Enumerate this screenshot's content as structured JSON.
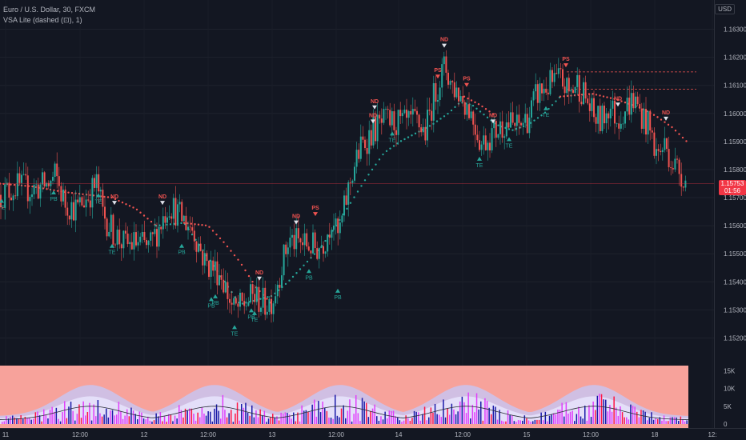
{
  "legend": {
    "symbol": "Euro / U.S. Dollar, 30, FXCM",
    "indicator": "VSA Lite (dashed (⊡), 1)"
  },
  "currency_label": "USD",
  "last_price": {
    "value": "1.15753",
    "countdown": "01:56"
  },
  "volume_panel_title": "",
  "colors": {
    "up": "#26a69a",
    "down": "#ef5350",
    "background": "#131722",
    "volume_panel": "#f7a29b"
  },
  "chart_data": [
    {
      "type": "line",
      "title": "",
      "x_ticks": [
        "11",
        "12:00",
        "12",
        "12:00",
        "13",
        "12:00",
        "14",
        "12:00",
        "15",
        "12:00",
        "18",
        "12:"
      ],
      "y_ticks": [
        "1.16300",
        "1.16200",
        "1.16100",
        "1.16000",
        "1.15900",
        "1.15800",
        "1.15700",
        "1.15600",
        "1.15500",
        "1.15400",
        "1.15300",
        "1.15200"
      ],
      "ylim": [
        1.1515,
        1.1637
      ],
      "close_path": {
        "x": [
          0,
          20,
          35,
          50,
          62,
          68,
          80,
          95,
          110,
          120,
          128,
          140,
          155,
          170,
          185,
          200,
          210,
          225,
          240,
          255,
          265,
          275,
          290,
          300,
          315,
          330,
          340,
          350,
          360,
          370,
          385,
          395,
          405,
          415,
          420,
          425,
          432,
          440,
          450,
          465,
          480,
          490,
          505,
          520,
          530,
          540,
          548,
          555,
          562,
          570,
          578,
          585,
          595,
          600,
          610,
          620,
          630,
          645,
          660,
          670,
          680,
          690,
          700,
          710,
          720,
          730,
          740,
          750,
          760,
          770,
          780,
          790,
          800,
          810,
          820,
          830,
          840,
          850,
          858
        ],
        "y": [
          1.1571,
          1.1574,
          1.1573,
          1.1574,
          1.1575,
          1.1578,
          1.1568,
          1.1566,
          1.1571,
          1.1575,
          1.1564,
          1.1558,
          1.1553,
          1.1554,
          1.1552,
          1.1561,
          1.1568,
          1.1563,
          1.1559,
          1.1547,
          1.1545,
          1.1543,
          1.153,
          1.1531,
          1.1535,
          1.1532,
          1.1534,
          1.1545,
          1.1555,
          1.1554,
          1.1553,
          1.1552,
          1.1555,
          1.1564,
          1.1555,
          1.156,
          1.157,
          1.158,
          1.1588,
          1.1594,
          1.1597,
          1.1597,
          1.1596,
          1.1597,
          1.1593,
          1.1605,
          1.1612,
          1.1617,
          1.1611,
          1.1608,
          1.1605,
          1.1602,
          1.1594,
          1.1589,
          1.1592,
          1.1594,
          1.1597,
          1.1595,
          1.1599,
          1.1607,
          1.1609,
          1.1611,
          1.1612,
          1.1607,
          1.1611,
          1.1606,
          1.1599,
          1.1597,
          1.1603,
          1.1598,
          1.1602,
          1.1605,
          1.16,
          1.1595,
          1.1585,
          1.1589,
          1.1582,
          1.1579,
          1.15753
        ]
      },
      "trail_up": {
        "x": [
          195,
          230,
          300,
          340,
          360,
          380,
          400,
          420,
          440,
          460,
          480,
          500,
          520,
          540,
          560,
          575,
          590,
          620,
          640,
          660,
          680,
          700
        ],
        "y": [
          1.156,
          1.1561,
          1.1532,
          1.1535,
          1.154,
          1.1546,
          1.1552,
          1.156,
          1.1569,
          1.1578,
          1.1586,
          1.159,
          1.1593,
          1.1596,
          1.16,
          1.1604,
          1.1603,
          1.1596,
          1.1594,
          1.1596,
          1.16,
          1.1606
        ]
      },
      "trail_down": {
        "x": [
          0,
          40,
          80,
          110,
          140,
          170,
          195
        ],
        "y": [
          1.1575,
          1.1574,
          1.1572,
          1.1571,
          1.157,
          1.1566,
          1.156
        ]
      },
      "trail_down_2": {
        "x": [
          230,
          260,
          280,
          300,
          320,
          340
        ],
        "y": [
          1.1561,
          1.156,
          1.1554,
          1.1547,
          1.1538,
          1.1532
        ]
      },
      "trail_down_3": {
        "x": [
          580,
          600,
          620
        ],
        "y": [
          1.1606,
          1.1603,
          1.1599
        ]
      },
      "trail_down_4": {
        "x": [
          700,
          740,
          770,
          800,
          820,
          840,
          858
        ],
        "y": [
          1.1606,
          1.1607,
          1.1605,
          1.1602,
          1.1599,
          1.1595,
          1.159
        ]
      },
      "resistance_levels": [
        1.16148,
        1.16086
      ],
      "signals": [
        {
          "label": "TE",
          "x": 2,
          "price": 1.1569,
          "dir": "up"
        },
        {
          "label": "PB",
          "x": 67,
          "price": 1.1572,
          "dir": "up"
        },
        {
          "label": "TE",
          "x": 123,
          "price": 1.1571,
          "dir": "up"
        },
        {
          "label": "ND",
          "x": 143,
          "price": 1.1568,
          "dir": "down"
        },
        {
          "label": "TE",
          "x": 140,
          "price": 1.1553,
          "dir": "up"
        },
        {
          "label": "PB",
          "x": 227,
          "price": 1.1553,
          "dir": "up"
        },
        {
          "label": "ND",
          "x": 203,
          "price": 1.1568,
          "dir": "down"
        },
        {
          "label": "PB",
          "x": 264,
          "price": 1.1534,
          "dir": "up"
        },
        {
          "label": "PB",
          "x": 269,
          "price": 1.1535,
          "dir": "up"
        },
        {
          "label": "TE",
          "x": 293,
          "price": 1.1524,
          "dir": "up"
        },
        {
          "label": "PB",
          "x": 314,
          "price": 1.153,
          "dir": "up"
        },
        {
          "label": "TE",
          "x": 318,
          "price": 1.1529,
          "dir": "up"
        },
        {
          "label": "ND",
          "x": 324,
          "price": 1.1541,
          "dir": "down"
        },
        {
          "label": "ND",
          "x": 370,
          "price": 1.1561,
          "dir": "down"
        },
        {
          "label": "PB",
          "x": 386,
          "price": 1.1544,
          "dir": "up"
        },
        {
          "label": "PS",
          "x": 394,
          "price": 1.1564,
          "dir": "down"
        },
        {
          "label": "PB",
          "x": 422,
          "price": 1.1537,
          "dir": "up"
        },
        {
          "label": "ND",
          "x": 468,
          "price": 1.1602,
          "dir": "down"
        },
        {
          "label": "ND",
          "x": 466,
          "price": 1.1597,
          "dir": "down"
        },
        {
          "label": "TE",
          "x": 490,
          "price": 1.1593,
          "dir": "up"
        },
        {
          "label": "ND",
          "x": 555,
          "price": 1.1624,
          "dir": "down"
        },
        {
          "label": "PS",
          "x": 547,
          "price": 1.1613,
          "dir": "down"
        },
        {
          "label": "PS",
          "x": 583,
          "price": 1.161,
          "dir": "down"
        },
        {
          "label": "TE",
          "x": 599,
          "price": 1.1584,
          "dir": "up"
        },
        {
          "label": "ND",
          "x": 616,
          "price": 1.1597,
          "dir": "down"
        },
        {
          "label": "TE",
          "x": 636,
          "price": 1.1591,
          "dir": "up"
        },
        {
          "label": "TE",
          "x": 682,
          "price": 1.1602,
          "dir": "up"
        },
        {
          "label": "PS",
          "x": 707,
          "price": 1.1617,
          "dir": "down"
        },
        {
          "label": "ND",
          "x": 772,
          "price": 1.1603,
          "dir": "down"
        },
        {
          "label": "ND",
          "x": 832,
          "price": 1.1598,
          "dir": "down"
        }
      ]
    },
    {
      "type": "bar",
      "title": "",
      "y_ticks": [
        "15K",
        "10K",
        "5K",
        "0"
      ],
      "ylim": [
        0,
        16000
      ],
      "bars_seed": 7,
      "sessions_x": [
        113,
        268,
        425,
        582,
        742
      ]
    }
  ]
}
